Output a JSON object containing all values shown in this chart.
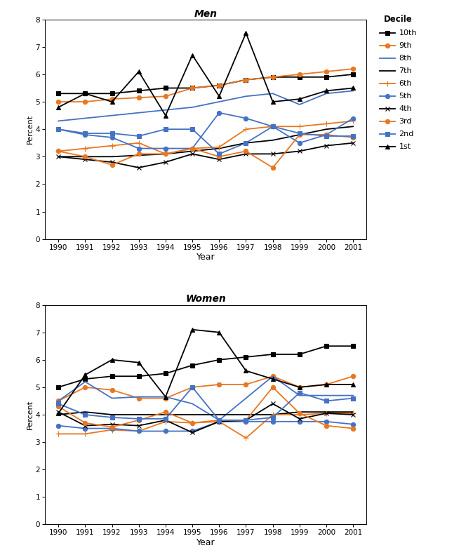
{
  "years": [
    1990,
    1991,
    1992,
    1993,
    1994,
    1995,
    1996,
    1997,
    1998,
    1999,
    2000,
    2001
  ],
  "men": {
    "10th": [
      5.3,
      5.3,
      5.3,
      5.4,
      5.5,
      5.5,
      5.6,
      5.8,
      5.9,
      5.9,
      5.9,
      6.0
    ],
    "9th": [
      5.0,
      5.0,
      5.1,
      5.15,
      5.2,
      5.5,
      5.6,
      5.8,
      5.9,
      6.0,
      6.1,
      6.2
    ],
    "8th": [
      4.3,
      4.4,
      4.5,
      4.6,
      4.7,
      4.8,
      5.0,
      5.2,
      5.3,
      4.9,
      5.3,
      5.4
    ],
    "7th": [
      3.0,
      3.0,
      3.0,
      3.05,
      3.1,
      3.2,
      3.3,
      3.5,
      3.6,
      3.8,
      4.0,
      4.1
    ],
    "6th": [
      3.2,
      3.3,
      3.4,
      3.5,
      3.1,
      3.3,
      3.35,
      4.0,
      4.1,
      4.1,
      4.2,
      4.3
    ],
    "5th": [
      4.0,
      3.8,
      3.7,
      3.3,
      3.3,
      3.3,
      4.6,
      4.4,
      4.1,
      3.5,
      3.8,
      4.4
    ],
    "4th": [
      3.0,
      2.9,
      2.8,
      2.6,
      2.8,
      3.1,
      2.9,
      3.1,
      3.1,
      3.2,
      3.4,
      3.5
    ],
    "3rd": [
      3.2,
      3.0,
      2.7,
      3.1,
      3.1,
      3.3,
      3.0,
      3.2,
      2.6,
      3.8,
      3.8,
      3.7
    ],
    "2nd": [
      4.0,
      3.85,
      3.85,
      3.75,
      4.0,
      4.0,
      3.1,
      3.5,
      4.1,
      3.85,
      3.75,
      3.75
    ],
    "1st": [
      4.8,
      5.3,
      5.0,
      6.1,
      4.5,
      6.7,
      5.2,
      7.5,
      5.0,
      5.1,
      5.4,
      5.5
    ]
  },
  "women": {
    "10th": [
      5.0,
      5.3,
      5.4,
      5.4,
      5.5,
      5.8,
      6.0,
      6.1,
      6.2,
      6.2,
      6.5,
      6.5
    ],
    "9th": [
      4.5,
      5.0,
      4.9,
      4.6,
      4.6,
      5.0,
      5.1,
      5.1,
      5.4,
      5.0,
      5.1,
      5.4
    ],
    "8th": [
      4.5,
      5.2,
      4.6,
      4.65,
      4.65,
      4.4,
      3.8,
      4.6,
      5.4,
      4.7,
      4.7,
      4.7
    ],
    "7th": [
      4.0,
      4.1,
      4.0,
      4.0,
      4.0,
      4.0,
      4.0,
      4.0,
      4.0,
      4.1,
      4.1,
      4.1
    ],
    "6th": [
      3.3,
      3.3,
      3.45,
      3.4,
      3.75,
      3.7,
      3.75,
      3.15,
      4.0,
      4.0,
      4.05,
      4.05
    ],
    "5th": [
      3.6,
      3.5,
      3.5,
      3.4,
      3.4,
      3.4,
      3.75,
      3.75,
      3.75,
      3.75,
      3.75,
      3.65
    ],
    "4th": [
      4.1,
      3.6,
      3.65,
      3.6,
      3.8,
      3.35,
      3.75,
      3.8,
      4.4,
      3.85,
      4.05,
      4.0
    ],
    "3rd": [
      4.3,
      3.7,
      3.55,
      3.8,
      4.1,
      3.7,
      3.8,
      3.8,
      5.0,
      4.05,
      3.6,
      3.5
    ],
    "2nd": [
      4.4,
      4.0,
      3.9,
      3.85,
      3.85,
      5.0,
      3.8,
      3.8,
      3.9,
      4.8,
      4.5,
      4.6
    ],
    "1st": [
      4.05,
      5.45,
      6.0,
      5.9,
      4.65,
      7.1,
      7.0,
      5.6,
      5.3,
      5.0,
      5.1,
      5.1
    ]
  },
  "series_config": {
    "10th": {
      "color": "#000000",
      "marker": "s",
      "ms": 4.5,
      "lw": 1.3
    },
    "9th": {
      "color": "#E87722",
      "marker": "o",
      "ms": 4.5,
      "lw": 1.3
    },
    "8th": {
      "color": "#4472C4",
      "marker": "",
      "ms": 4.5,
      "lw": 1.3
    },
    "7th": {
      "color": "#000000",
      "marker": "",
      "ms": 4.5,
      "lw": 1.3
    },
    "6th": {
      "color": "#E87722",
      "marker": "+",
      "ms": 6,
      "lw": 1.3
    },
    "5th": {
      "color": "#4472C4",
      "marker": "o",
      "ms": 4.5,
      "lw": 1.3
    },
    "4th": {
      "color": "#000000",
      "marker": "x",
      "ms": 5,
      "lw": 1.3
    },
    "3rd": {
      "color": "#E87722",
      "marker": "o",
      "ms": 4.5,
      "lw": 1.3
    },
    "2nd": {
      "color": "#4472C4",
      "marker": "s",
      "ms": 4.5,
      "lw": 1.3
    },
    "1st": {
      "color": "#000000",
      "marker": "^",
      "ms": 5,
      "lw": 1.3
    }
  },
  "legend_order": [
    "10th",
    "9th",
    "8th",
    "7th",
    "6th",
    "5th",
    "4th",
    "3rd",
    "2nd",
    "1st"
  ],
  "ylim": [
    0,
    8
  ],
  "yticks": [
    0,
    1,
    2,
    3,
    4,
    5,
    6,
    7,
    8
  ],
  "xlabel": "Year",
  "ylabel": "Percent",
  "title_men": "Men",
  "title_women": "Women",
  "bg_color": "#ffffff"
}
